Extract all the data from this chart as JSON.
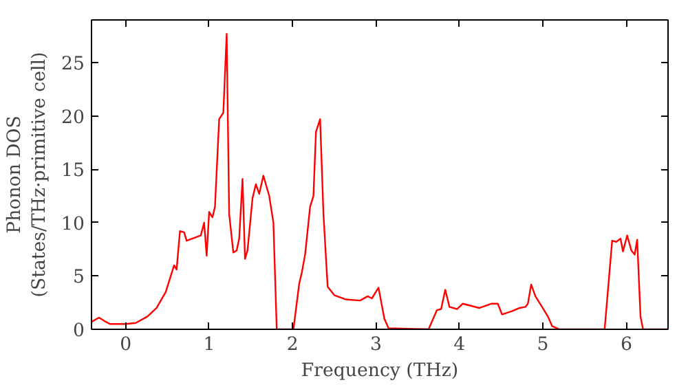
{
  "chart_data": {
    "type": "line",
    "xlabel": "Frequency (THz)",
    "ylabel": "Phonon DOS\n(States/THz·primitive cell)",
    "xlim": [
      -0.41,
      6.5
    ],
    "ylim": [
      0,
      29
    ],
    "xticks": [
      0,
      1,
      2,
      3,
      4,
      5,
      6
    ],
    "yticks": [
      0,
      5,
      10,
      15,
      20,
      25
    ],
    "grid": false,
    "x": [
      -0.41,
      -0.32,
      -0.26,
      -0.19,
      0,
      0.12,
      0.26,
      0.37,
      0.48,
      0.58,
      0.61,
      0.65,
      0.7,
      0.73,
      0.83,
      0.9,
      0.94,
      0.97,
      1.0,
      1.04,
      1.07,
      1.12,
      1.17,
      1.21,
      1.24,
      1.29,
      1.33,
      1.36,
      1.4,
      1.43,
      1.46,
      1.52,
      1.56,
      1.6,
      1.65,
      1.72,
      1.77,
      1.81,
      2.01,
      2.08,
      2.11,
      2.15,
      2.21,
      2.25,
      2.28,
      2.33,
      2.37,
      2.42,
      2.5,
      2.64,
      2.81,
      2.9,
      2.95,
      3.03,
      3.1,
      3.15,
      3.63,
      3.73,
      3.78,
      3.83,
      3.88,
      3.97,
      4.04,
      4.24,
      4.38,
      4.46,
      4.51,
      4.63,
      4.72,
      4.79,
      4.82,
      4.86,
      4.91,
      4.99,
      5.06,
      5.11,
      5.2,
      5.74,
      5.83,
      5.88,
      5.93,
      5.96,
      6.01,
      6.06,
      6.1,
      6.13,
      6.17,
      6.2,
      6.5
    ],
    "series": [
      {
        "color": "#ff0000",
        "values": [
          0.7,
          1.1,
          0.8,
          0.5,
          0.5,
          0.6,
          1.2,
          2,
          3.5,
          6,
          5.6,
          9.2,
          9.1,
          8.3,
          8.6,
          8.8,
          10,
          6.9,
          11,
          10.5,
          11.5,
          19.7,
          20.3,
          27.7,
          10.8,
          7.2,
          7.4,
          8.5,
          14.1,
          6.6,
          7.4,
          12.3,
          13.6,
          12.7,
          14.4,
          12.5,
          10,
          0,
          0,
          4.3,
          5.3,
          7,
          11.5,
          12.5,
          18.5,
          19.7,
          10.8,
          4,
          3.2,
          2.8,
          2.7,
          3.1,
          2.9,
          3.9,
          1,
          0.1,
          0,
          1.8,
          1.9,
          3.7,
          2.1,
          1.9,
          2.4,
          2,
          2.4,
          2.4,
          1.4,
          1.7,
          2,
          2.1,
          2.4,
          4.2,
          3.1,
          2.1,
          1.2,
          0.3,
          0,
          0,
          8.3,
          8.2,
          8.5,
          7.3,
          8.8,
          7.4,
          7,
          8.4,
          1.2,
          0,
          0
        ]
      }
    ]
  }
}
